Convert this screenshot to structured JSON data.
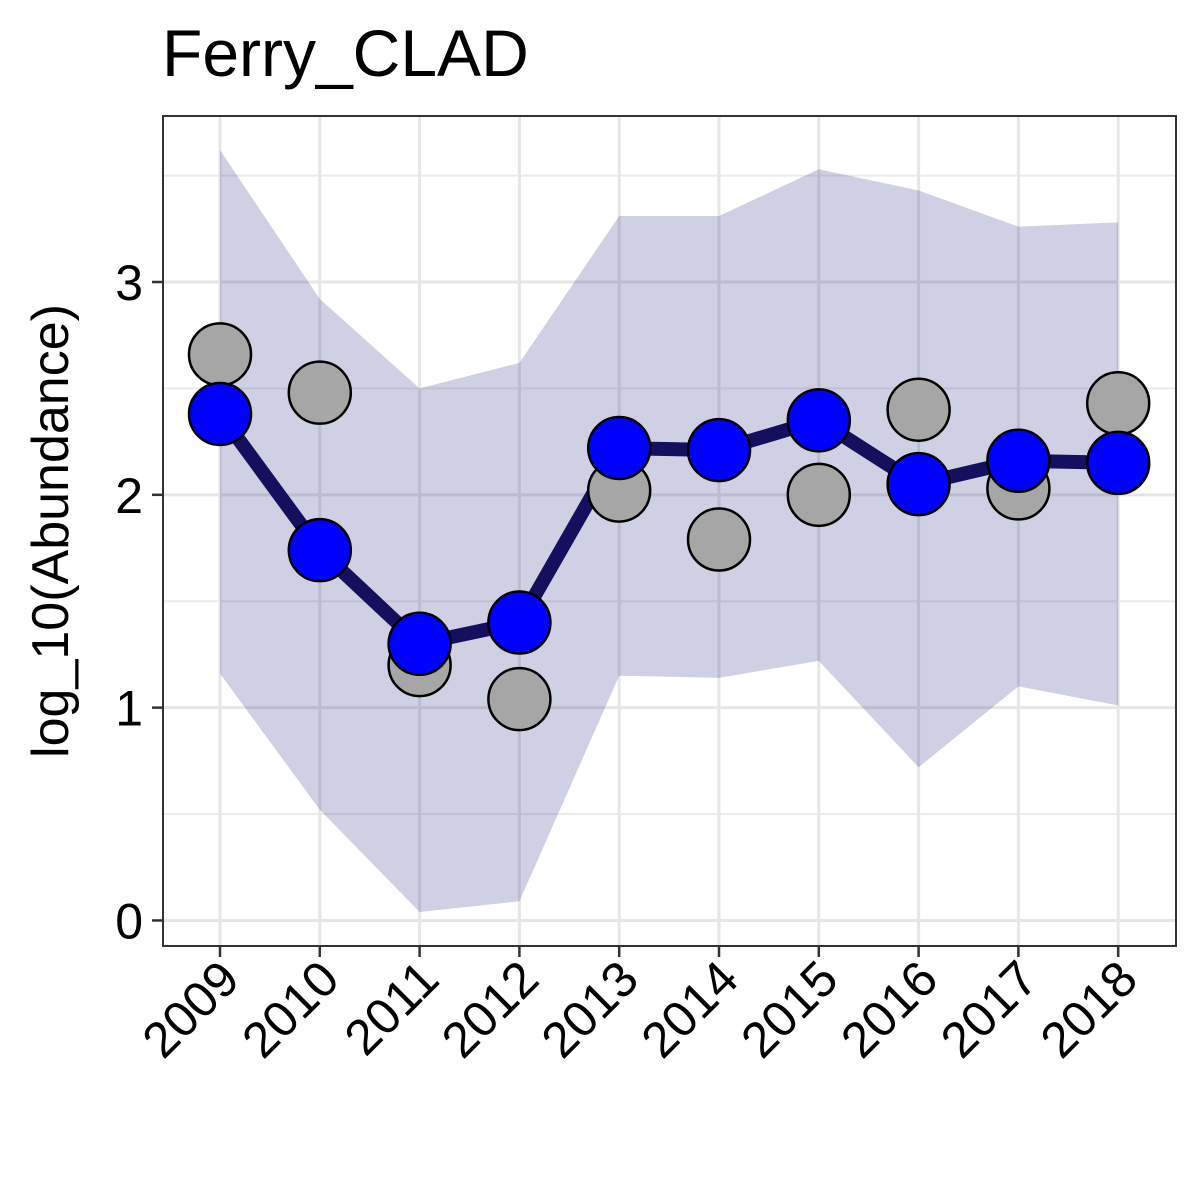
{
  "chart_data": {
    "type": "line",
    "title": "Ferry_CLAD",
    "xlabel": "",
    "ylabel": "log_10(Abundance)",
    "categories": [
      "2009",
      "2010",
      "2011",
      "2012",
      "2013",
      "2014",
      "2015",
      "2016",
      "2017",
      "2018"
    ],
    "ylim": [
      -0.12,
      3.78
    ],
    "yticks": [
      0,
      1,
      2,
      3
    ],
    "ytick_labels": [
      "0",
      "1",
      "2",
      "3"
    ],
    "grid": true,
    "series": [
      {
        "values": [
          2.38,
          1.74,
          1.3,
          1.4,
          2.22,
          2.21,
          2.35,
          2.05,
          2.16,
          2.15
        ],
        "color": "#0000ff",
        "line_color": "#14105e"
      }
    ],
    "observed": {
      "values": [
        2.66,
        2.48,
        1.2,
        1.04,
        2.02,
        1.79,
        2.0,
        2.4,
        2.03,
        2.43
      ],
      "color": "#a6a6a6"
    },
    "band": {
      "upper": [
        3.62,
        2.92,
        2.5,
        2.62,
        3.31,
        3.31,
        3.53,
        3.43,
        3.26,
        3.28
      ],
      "lower": [
        1.16,
        0.52,
        0.04,
        0.09,
        1.15,
        1.14,
        1.22,
        0.72,
        1.1,
        1.01
      ],
      "color": "#14147a",
      "opacity": 0.2
    }
  }
}
